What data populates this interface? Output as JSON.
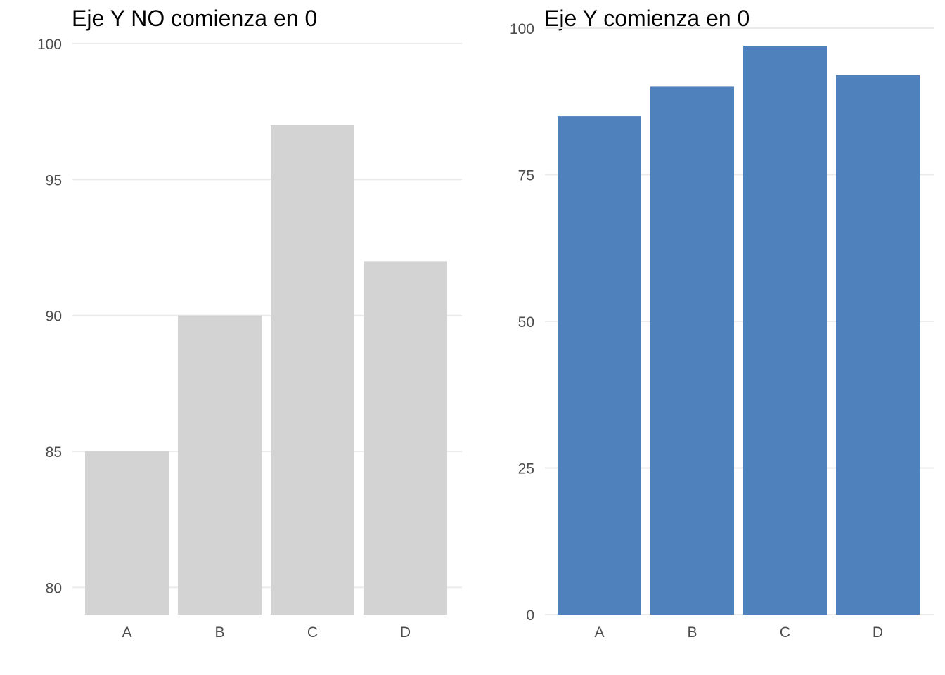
{
  "chart_data": [
    {
      "type": "bar",
      "title": "Eje Y NO comienza en 0",
      "categories": [
        "A",
        "B",
        "C",
        "D"
      ],
      "values": [
        85,
        90,
        97,
        92
      ],
      "ylim": [
        79,
        100
      ],
      "yticks": [
        80,
        85,
        90,
        95,
        100
      ],
      "bar_color": "#d3d3d3",
      "grid": true,
      "legend": "none"
    },
    {
      "type": "bar",
      "title": "Eje Y comienza en 0",
      "categories": [
        "A",
        "B",
        "C",
        "D"
      ],
      "values": [
        85,
        90,
        97,
        92
      ],
      "ylim": [
        0,
        100
      ],
      "yticks": [
        0,
        25,
        50,
        75,
        100
      ],
      "bar_color": "#4f81bd",
      "grid": true,
      "legend": "none"
    }
  ]
}
